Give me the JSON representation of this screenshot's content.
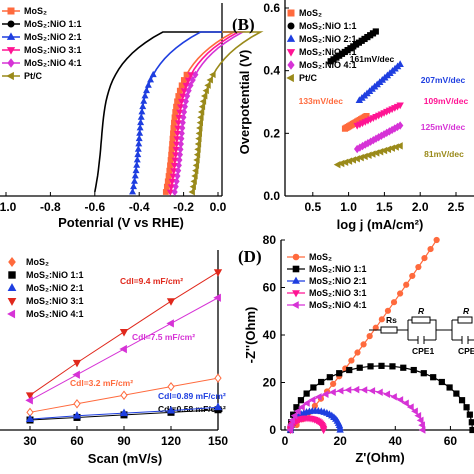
{
  "colors": {
    "MoS2": "#ff6a3d",
    "MoS2:NiO 1:1": "#000000",
    "MoS2:NiO 2:1": "#1f3fe0",
    "MoS2:NiO 3:1": "#ff1493",
    "MoS2:NiO 4:1": "#d633d6",
    "Pt/C": "#9a8a1a",
    "capRed": "#e0281c"
  },
  "chart_data": [
    {
      "panel": "A",
      "type": "line",
      "letter": "",
      "xlabel": "Potenrial (V vs RHE)",
      "ylabel": "",
      "xlim": [
        -1.0,
        0.0
      ],
      "xticks": [
        "-1.0",
        "-0.8",
        "-0.6",
        "-0.4",
        "-0.2",
        "0.0"
      ],
      "xtick_values": [
        -1.0,
        -0.8,
        -0.6,
        -0.4,
        -0.2,
        0.0
      ],
      "legend": [
        "MoS₂",
        "MoS₂:NiO 1:1",
        "MoS₂:NiO 2:1",
        "MoS₂:NiO 3:1",
        "MoS₂:NiO 4:1",
        "Pt/C"
      ],
      "legend_position": "top-left",
      "series": [
        {
          "name": "MoS₂",
          "key": "MoS2",
          "onset": -0.28,
          "marker": "square"
        },
        {
          "name": "MoS₂:NiO 1:1",
          "key": "MoS2:NiO 1:1",
          "onset": -0.6,
          "marker": "circle"
        },
        {
          "name": "MoS₂:NiO 2:1",
          "key": "MoS2:NiO 2:1",
          "onset": -0.43,
          "marker": "triangle-up"
        },
        {
          "name": "MoS₂:NiO 3:1",
          "key": "MoS2:NiO 3:1",
          "onset": -0.26,
          "marker": "triangle-down"
        },
        {
          "name": "MoS₂:NiO 4:1",
          "key": "MoS2:NiO 4:1",
          "onset": -0.24,
          "marker": "diamond"
        },
        {
          "name": "Pt/C",
          "key": "Pt/C",
          "onset": -0.16,
          "marker": "triangle-left"
        }
      ]
    },
    {
      "panel": "B",
      "type": "scatter",
      "letter": "(B)",
      "xlabel": "log j (mA/cm²)",
      "ylabel": "Overpotential (V)",
      "xlim": [
        0.0,
        2.5
      ],
      "ylim": [
        0.0,
        0.6
      ],
      "xticks": [
        "0.5",
        "1.0",
        "1.5",
        "2.0",
        "2.5"
      ],
      "xtick_values": [
        0.5,
        1.0,
        1.5,
        2.0,
        2.5
      ],
      "yticks": [
        "0.0",
        "0.2",
        "0.4",
        "0.6"
      ],
      "ytick_values": [
        0.0,
        0.2,
        0.4,
        0.6
      ],
      "legend": [
        "MoS₂",
        "MoS₂:NiO 1:1",
        "MoS₂:NiO 2:1",
        "MoS₂:NiO 3:1",
        "MoS₂:NiO 4:1",
        "Pt/C"
      ],
      "legend_position": "top-left",
      "series": [
        {
          "name": "MoS₂",
          "key": "MoS2",
          "x": [
            0.95,
            1.25
          ],
          "y": [
            0.215,
            0.255
          ],
          "slope_label": "133mV/dec"
        },
        {
          "name": "MoS₂:NiO 1:1",
          "key": "MoS2:NiO 1:1",
          "x": [
            0.75,
            1.38
          ],
          "y": [
            0.43,
            0.525
          ],
          "slope_label": "161mV/dec"
        },
        {
          "name": "MoS₂:NiO 2:1",
          "key": "MoS2:NiO 2:1",
          "x": [
            1.15,
            1.72
          ],
          "y": [
            0.305,
            0.42
          ],
          "slope_label": "207mV/dec"
        },
        {
          "name": "MoS₂:NiO 3:1",
          "key": "MoS2:NiO 3:1",
          "x": [
            1.12,
            1.72
          ],
          "y": [
            0.225,
            0.29
          ],
          "slope_label": "109mV/dec"
        },
        {
          "name": "MoS₂:NiO 4:1",
          "key": "MoS2:NiO 4:1",
          "x": [
            1.12,
            1.72
          ],
          "y": [
            0.15,
            0.225
          ],
          "slope_label": "125mV/dec"
        },
        {
          "name": "Pt/C",
          "key": "Pt/C",
          "x": [
            0.85,
            1.72
          ],
          "y": [
            0.1,
            0.16
          ],
          "slope_label": "81mV/dec"
        }
      ]
    },
    {
      "panel": "C",
      "type": "scatter",
      "letter": "",
      "xlabel": "Scan (mV/s)",
      "ylabel": "",
      "xlim": [
        30,
        150
      ],
      "xticks": [
        "30",
        "60",
        "90",
        "120",
        "150"
      ],
      "xtick_values": [
        30,
        60,
        90,
        120,
        150
      ],
      "ylim": [
        0,
        1
      ],
      "legend": [
        "MoS₂",
        "MoS₂:NiO 1:1",
        "MoS₂:NiO 2:1",
        "MoS₂:NiO 3:1",
        "MoS₂:NiO 4:1"
      ],
      "legend_position": "top-left",
      "x": [
        30,
        60,
        90,
        120,
        150
      ],
      "series": [
        {
          "name": "MoS₂",
          "key": "MoS2",
          "marker": "diamond",
          "values": [
            0.08,
            0.13,
            0.18,
            0.23,
            0.28
          ],
          "cdl": "Cdl=3.2 mF/cm²"
        },
        {
          "name": "MoS₂:NiO 1:1",
          "key": "MoS2:NiO 1:1",
          "marker": "square",
          "values": [
            0.035,
            0.05,
            0.065,
            0.08,
            0.095
          ],
          "cdl": "Cdl=0.58 mF/cm²"
        },
        {
          "name": "MoS₂:NiO 2:1",
          "key": "MoS2:NiO 2:1",
          "marker": "triangle-up",
          "values": [
            0.04,
            0.06,
            0.075,
            0.09,
            0.11
          ],
          "cdl": "Cdl=0.89 mF/cm²"
        },
        {
          "name": "MoS₂:NiO 3:1",
          "key": "MoS2:NiO 3:1",
          "marker": "triangle-down",
          "values": [
            0.18,
            0.37,
            0.55,
            0.73,
            0.9
          ],
          "cdl": "Cdl=9.4 mF/cm²",
          "color_key": "capRed"
        },
        {
          "name": "MoS₂:NiO 4:1",
          "key": "MoS2:NiO 4:1",
          "marker": "triangle-left",
          "values": [
            0.15,
            0.3,
            0.45,
            0.6,
            0.75
          ],
          "cdl": "Cdl=7.5 mF/cm²"
        }
      ]
    },
    {
      "panel": "D",
      "type": "scatter",
      "letter": "(D)",
      "xlabel": "Z'(Ohm)",
      "ylabel": "-Z''(Ohm)",
      "xlim": [
        0,
        70
      ],
      "ylim": [
        0,
        80
      ],
      "xticks": [
        "0",
        "20",
        "40",
        "60"
      ],
      "xtick_values": [
        0,
        20,
        40,
        60
      ],
      "yticks": [
        "0",
        "20",
        "40",
        "60",
        "80"
      ],
      "ytick_values": [
        0,
        20,
        40,
        60,
        80
      ],
      "legend": [
        "MoS₂",
        "MoS₂:NiO 1:1",
        "MoS₂:NiO 2:1",
        "MoS₂:NiO 3:1",
        "MoS₂:NiO 4:1"
      ],
      "legend_position": "top-left",
      "circuit_labels": [
        "Rs",
        "R",
        "R",
        "CPE1",
        "CPE"
      ],
      "series": [
        {
          "name": "MoS₂",
          "key": "MoS2",
          "kind": "line-rise",
          "start": 2,
          "end_x": 55,
          "end_y": 80,
          "marker": "circle"
        },
        {
          "name": "MoS₂:NiO 1:1",
          "key": "MoS2:NiO 1:1",
          "kind": "arc",
          "start": 2,
          "end": 68,
          "peak": 27,
          "marker": "square"
        },
        {
          "name": "MoS₂:NiO 2:1",
          "key": "MoS2:NiO 2:1",
          "kind": "arc",
          "start": 2,
          "end": 20,
          "peak": 8,
          "marker": "triangle-up"
        },
        {
          "name": "MoS₂:NiO 3:1",
          "key": "MoS2:NiO 3:1",
          "kind": "arc",
          "start": 2,
          "end": 14,
          "peak": 5,
          "marker": "triangle-down"
        },
        {
          "name": "MoS₂:NiO 4:1",
          "key": "MoS2:NiO 4:1",
          "kind": "arc",
          "start": 2,
          "end": 50,
          "peak": 17,
          "marker": "triangle-left"
        }
      ]
    }
  ]
}
